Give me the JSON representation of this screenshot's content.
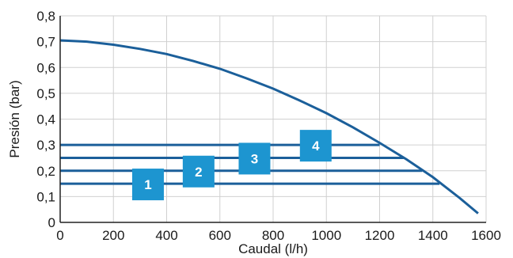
{
  "chart_data": {
    "type": "line",
    "title": "",
    "xlabel": "Caudal (l/h)",
    "ylabel": "Presión (bar)",
    "xlim": [
      0,
      1600
    ],
    "ylim": [
      0,
      0.8
    ],
    "grid": true,
    "x_ticks": [
      "0",
      "200",
      "400",
      "600",
      "800",
      "1000",
      "1200",
      "1400",
      "1600"
    ],
    "y_ticks": [
      "0",
      "0,1",
      "0,2",
      "0,3",
      "0,4",
      "0,5",
      "0,6",
      "0,7",
      "0,8"
    ],
    "colors": {
      "pump_curve": "#1b5f9a",
      "lines": "#1b5f9a",
      "badge": "#1d95d0",
      "grid": "#d0d0d0",
      "axis": "#222222"
    },
    "pump_curve": {
      "x": [
        0,
        100,
        200,
        300,
        400,
        500,
        600,
        700,
        800,
        900,
        1000,
        1100,
        1200,
        1300,
        1400,
        1500,
        1570
      ],
      "y": [
        0.705,
        0.7,
        0.688,
        0.672,
        0.652,
        0.625,
        0.595,
        0.558,
        0.518,
        0.472,
        0.423,
        0.368,
        0.308,
        0.245,
        0.175,
        0.095,
        0.035
      ]
    },
    "levels": [
      {
        "label": "1",
        "y": 0.15,
        "x_start": 0,
        "x_end": 1425,
        "badge_x": 330
      },
      {
        "label": "2",
        "y": 0.2,
        "x_start": 0,
        "x_end": 1360,
        "badge_x": 520
      },
      {
        "label": "3",
        "y": 0.25,
        "x_start": 0,
        "x_end": 1290,
        "badge_x": 730
      },
      {
        "label": "4",
        "y": 0.3,
        "x_start": 0,
        "x_end": 1200,
        "badge_x": 960
      }
    ]
  }
}
